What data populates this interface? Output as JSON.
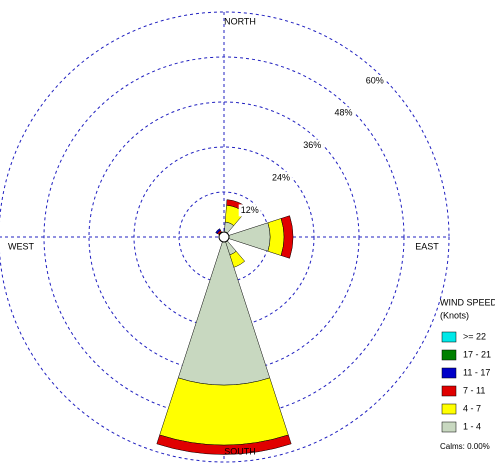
{
  "chart_data": {
    "type": "windrose",
    "categories": [
      "NORTH",
      null,
      null,
      null,
      "EAST",
      null,
      null,
      null,
      "SOUTH",
      null,
      null,
      null,
      "WEST",
      null,
      null,
      null
    ],
    "rlim": [
      0,
      60
    ],
    "rticks": [
      {
        "value": 12,
        "label": "12%"
      },
      {
        "value": 24,
        "label": "24%"
      },
      {
        "value": 36,
        "label": "36%"
      },
      {
        "value": 48,
        "label": "48%"
      },
      {
        "value": 60,
        "label": "60%"
      }
    ],
    "legend_title": [
      "WIND SPEED",
      "(Knots)"
    ],
    "calms_label": "Calms: 0.00%",
    "series": [
      {
        "name": ">= 22",
        "color": "#00e8e8",
        "values": [
          0,
          0,
          0,
          0,
          0,
          0,
          0,
          0,
          0,
          0,
          0,
          0,
          0,
          0,
          0,
          0
        ]
      },
      {
        "name": "17 - 21",
        "color": "#008000",
        "values": [
          0,
          0,
          0,
          0,
          0,
          0,
          0,
          0,
          0,
          0,
          0,
          0,
          0,
          0,
          0,
          0
        ]
      },
      {
        "name": "11 - 17",
        "color": "#0000c8",
        "values": [
          0,
          0,
          0,
          0,
          0,
          0,
          0,
          0,
          0,
          0,
          0,
          0,
          0,
          0,
          0.5,
          0
        ]
      },
      {
        "name": "7 - 11",
        "color": "#e00000",
        "values": [
          0,
          1.5,
          0,
          0,
          2.4,
          0,
          0,
          0,
          2.5,
          0,
          0,
          0,
          0,
          0,
          0.5,
          0
        ]
      },
      {
        "name": "4 - 7",
        "color": "#ffff00",
        "values": [
          0,
          4.5,
          0,
          0,
          3.7,
          0,
          0,
          3.5,
          16,
          0,
          0,
          0,
          0,
          0,
          0.5,
          0
        ]
      },
      {
        "name": "1 - 4",
        "color": "#c8d8c0",
        "values": [
          0,
          4,
          0,
          0,
          12.3,
          0,
          0,
          5,
          39.5,
          0,
          0,
          0,
          0,
          0,
          1,
          0
        ]
      }
    ]
  }
}
